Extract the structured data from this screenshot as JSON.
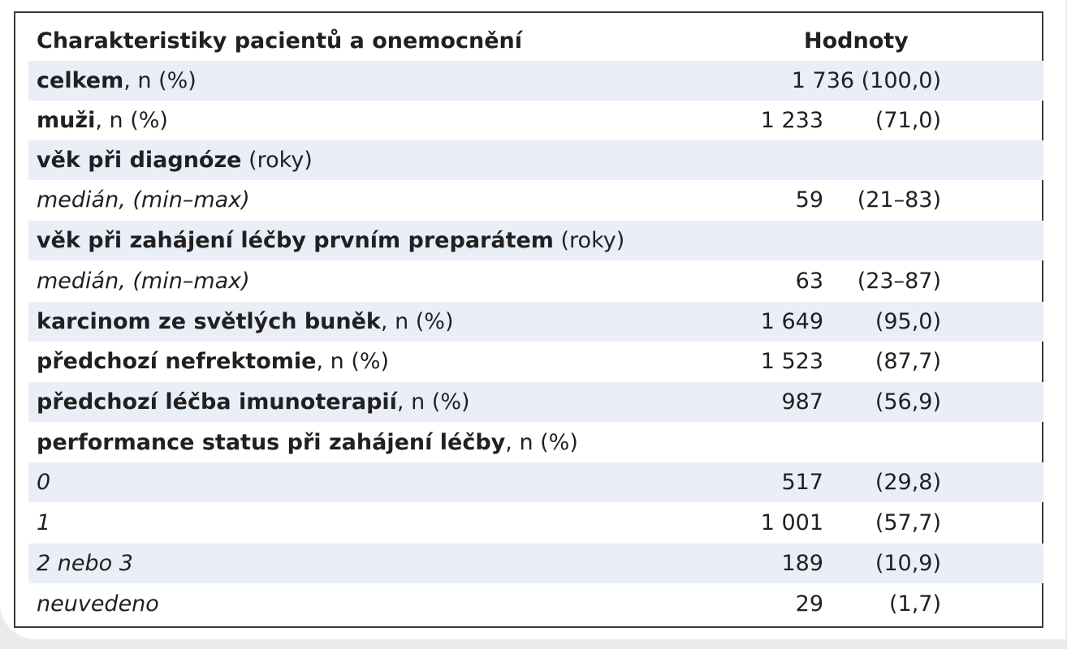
{
  "header": {
    "left": "Charakteristiky pacientů a onemocnění",
    "right": "Hodnoty"
  },
  "rows": [
    {
      "bold": "celkem",
      "rest": ", n (%)",
      "full": "1 736 (100,0)"
    },
    {
      "bold": "muži",
      "rest": ", n (%)",
      "n": "1 233",
      "pct": "(71,0)"
    },
    {
      "bold": "věk při diagnóze",
      "rest": " (roky)"
    },
    {
      "italic": "medián, (min–max)",
      "n": "59",
      "pct": "(21–83)"
    },
    {
      "bold": "věk při zahájení léčby prvním preparátem",
      "rest": " (roky)"
    },
    {
      "italic": "medián, (min–max)",
      "n": "63",
      "pct": "(23–87)"
    },
    {
      "bold": "karcinom ze světlých buněk",
      "rest": ", n (%)",
      "n": "1 649",
      "pct": "(95,0)"
    },
    {
      "bold": "předchozí nefrektomie",
      "rest": ", n (%)",
      "n": "1 523",
      "pct": "(87,7)"
    },
    {
      "bold": "předchozí léčba imunoterapií",
      "rest": ", n (%)",
      "n": "987",
      "pct": "(56,9)"
    },
    {
      "bold": "performance status při zahájení léčby",
      "rest": ", n (%)"
    },
    {
      "italic": "0",
      "n": "517",
      "pct": "(29,8)"
    },
    {
      "italic": "1",
      "n": "1 001",
      "pct": "(57,7)"
    },
    {
      "italic": "2 nebo 3",
      "n": "189",
      "pct": "(10,9)"
    },
    {
      "italic": "neuvedeno",
      "n": "29",
      "pct": "(1,7)"
    }
  ]
}
